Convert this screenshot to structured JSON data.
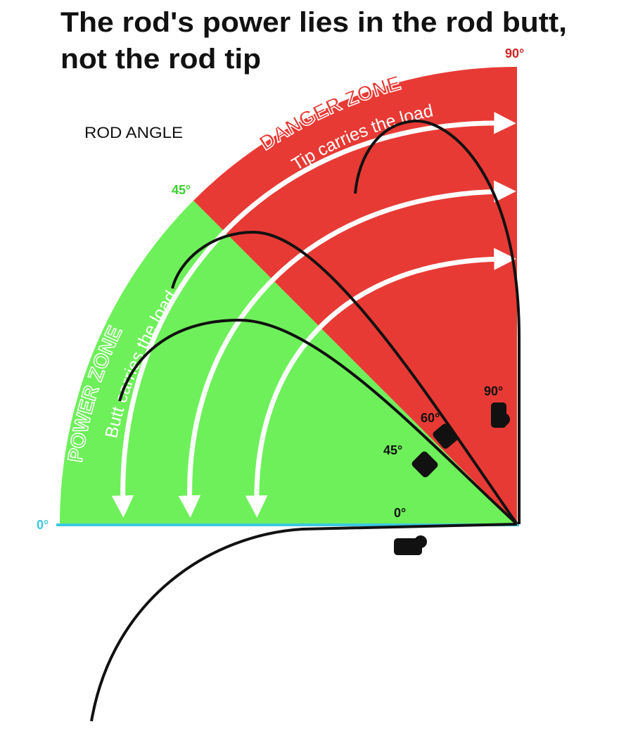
{
  "title": {
    "lines": [
      "The rod's power lies in the rod butt,",
      "not the rod tip"
    ]
  },
  "legend": {
    "label": "ROD ANGLE",
    "angles": [
      "0°",
      "45°",
      "90°"
    ]
  },
  "zones": [
    {
      "name": "DANGER ZONE",
      "caption": "Tip carries the load"
    },
    {
      "name": "POWER ZONE",
      "caption": "Butt carries the load"
    }
  ],
  "rod_positions": [
    "90°",
    "60°",
    "45°",
    "0°"
  ]
}
